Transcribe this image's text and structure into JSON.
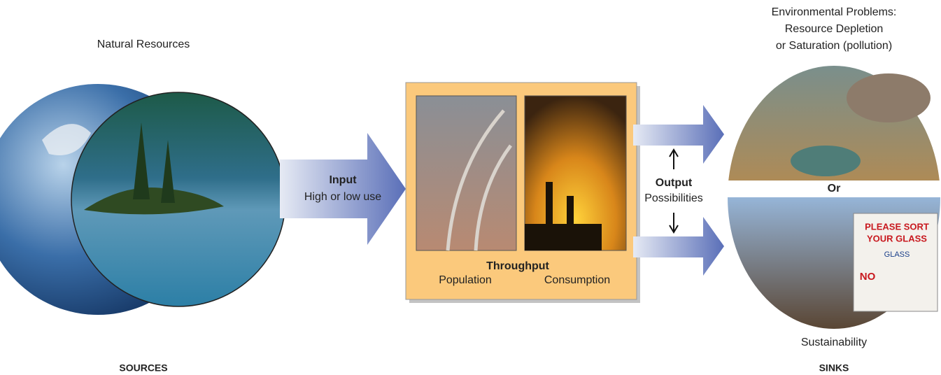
{
  "sources": {
    "title": "Natural Resources",
    "footer": "SOURCES"
  },
  "input": {
    "title": "Input",
    "subtitle": "High or low use"
  },
  "throughput": {
    "title": "Throughput",
    "left": "Population",
    "right": "Consumption"
  },
  "output": {
    "title": "Output",
    "subtitle": "Possibilities"
  },
  "sinks": {
    "problems": [
      "Environmental Problems:",
      "Resource Depletion",
      "or Saturation (pollution)"
    ],
    "separator": "Or",
    "sustainability": "Sustainability",
    "footer": "SINKS",
    "sign": {
      "line1": "PLEASE SORT",
      "line2": "YOUR GLASS",
      "line3": "GLASS",
      "line4": "NO"
    }
  }
}
